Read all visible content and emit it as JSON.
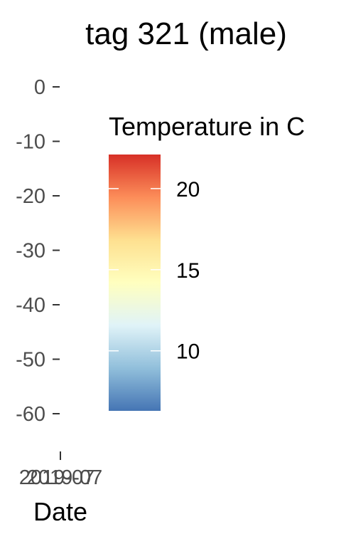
{
  "chart_data": {
    "type": "heatmap",
    "title": "tag 321 (male)",
    "xlabel": "Date",
    "ylabel": "",
    "x_tick_labels": [
      "2019-07",
      "2019-07"
    ],
    "x": [],
    "y_ticks": [
      0,
      -10,
      -20,
      -30,
      -40,
      -50,
      -60
    ],
    "y_tick_labels": [
      "0",
      "-10",
      "-20",
      "-30",
      "-40",
      "-50",
      "-60"
    ],
    "ylim": [
      -66,
      1
    ],
    "grid": false,
    "legend": {
      "title": "Temperature in C",
      "placement": "right",
      "range": [
        6.3,
        22.1
      ],
      "breaks": [
        10,
        15,
        20
      ],
      "break_labels": [
        "10",
        "15",
        "20"
      ],
      "colors": [
        "#4575b4",
        "#91bfdb",
        "#e0f3f8",
        "#ffffbf",
        "#fee090",
        "#fc8d59",
        "#d73027"
      ]
    }
  }
}
